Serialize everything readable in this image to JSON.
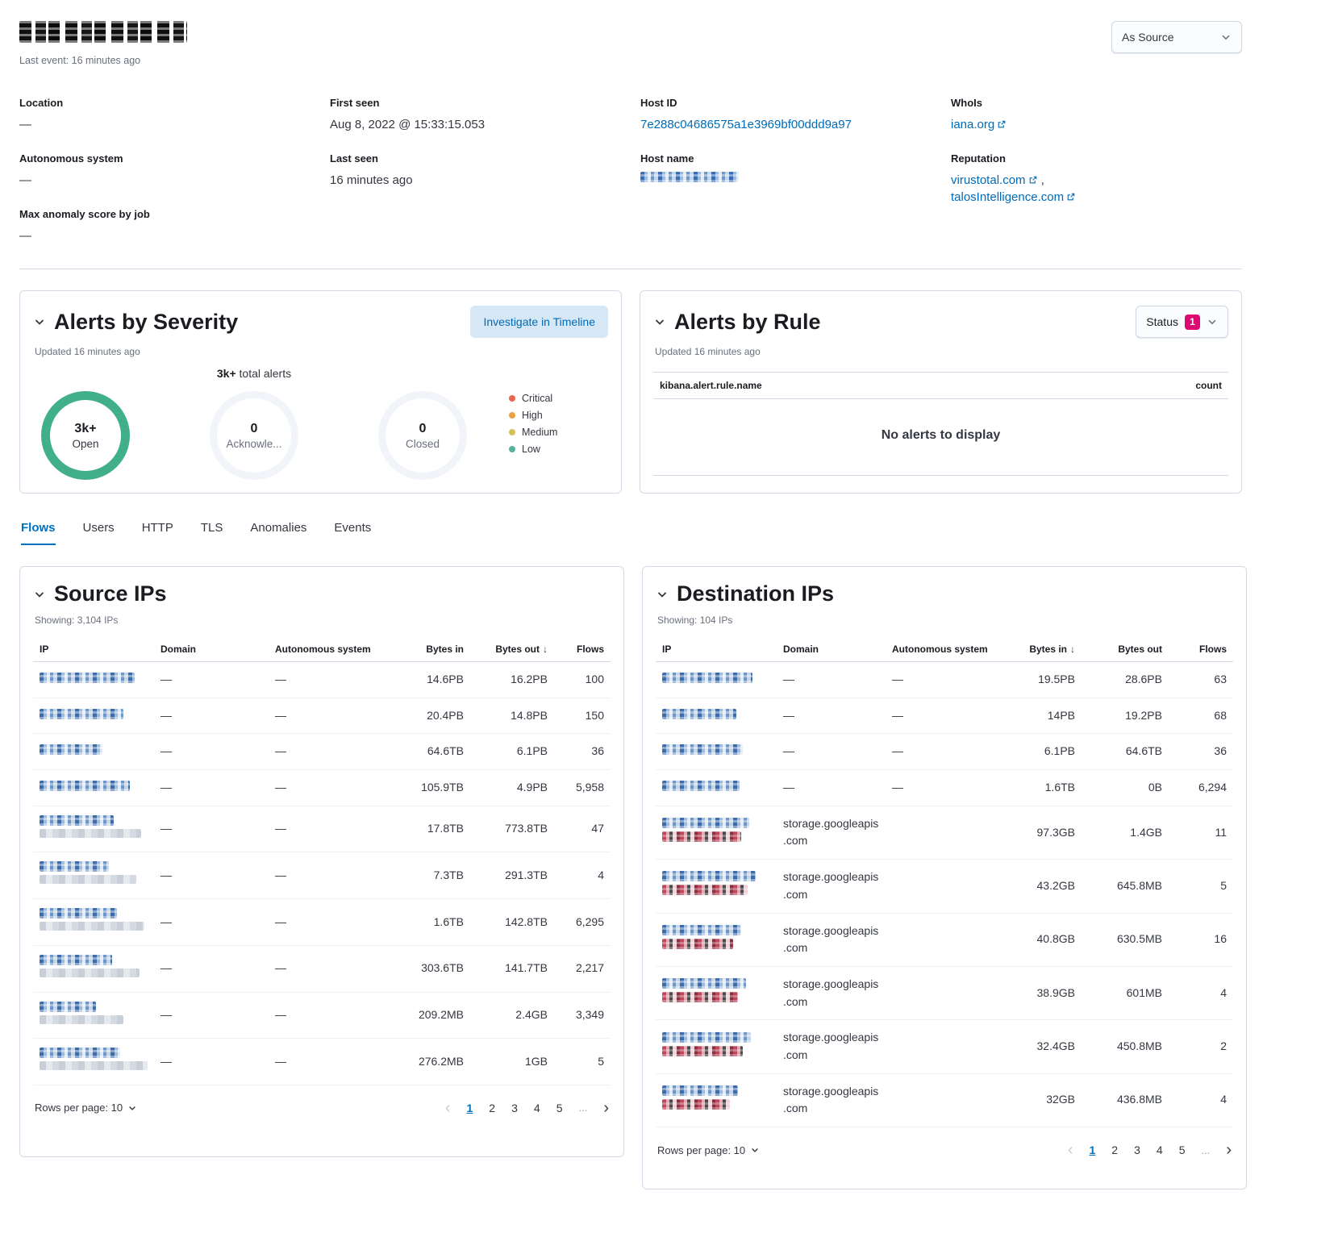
{
  "page": {
    "last_event": "Last event: 16 minutes ago",
    "view_selector": "As Source"
  },
  "overview": {
    "location": {
      "label": "Location",
      "value": "—"
    },
    "autonomous_system": {
      "label": "Autonomous system",
      "value": "—"
    },
    "max_anomaly": {
      "label": "Max anomaly score by job",
      "value": "—"
    },
    "first_seen": {
      "label": "First seen",
      "value": "Aug 8, 2022 @ 15:33:15.053"
    },
    "last_seen": {
      "label": "Last seen",
      "value": "16 minutes ago"
    },
    "host_id": {
      "label": "Host ID",
      "value": "7e288c04686575a1e3969bf00ddd9a97"
    },
    "host_name": {
      "label": "Host name"
    },
    "whois": {
      "label": "WhoIs",
      "value": "iana.org"
    },
    "reputation": {
      "label": "Reputation",
      "links": [
        "virustotal.com",
        "talosIntelligence.com"
      ],
      "separator": ","
    }
  },
  "alerts_by_severity": {
    "title": "Alerts by Severity",
    "updated": "Updated 16 minutes ago",
    "investigate_button": "Investigate in Timeline",
    "total_value": "3k+",
    "total_suffix": "total alerts",
    "donuts": [
      {
        "value": "3k+",
        "label": "Open"
      },
      {
        "value": "0",
        "label": "Acknowle..."
      },
      {
        "value": "0",
        "label": "Closed"
      }
    ],
    "legend": [
      {
        "label": "Critical",
        "color": "#e7664c"
      },
      {
        "label": "High",
        "color": "#e8a33d"
      },
      {
        "label": "Medium",
        "color": "#d6bf57"
      },
      {
        "label": "Low",
        "color": "#54b399"
      }
    ],
    "open_ring_color": "#41b08a"
  },
  "alerts_by_rule": {
    "title": "Alerts by Rule",
    "updated": "Updated 16 minutes ago",
    "status_label": "Status",
    "status_count": "1",
    "status_badge_color": "#dd0a73",
    "rule_column": "kibana.alert.rule.name",
    "count_column": "count",
    "empty_message": "No alerts to display"
  },
  "tabs": [
    {
      "label": "Flows"
    },
    {
      "label": "Users"
    },
    {
      "label": "HTTP"
    },
    {
      "label": "TLS"
    },
    {
      "label": "Anomalies"
    },
    {
      "label": "Events"
    }
  ],
  "source_ips": {
    "title": "Source IPs",
    "showing": "Showing: 3,104 IPs",
    "columns": {
      "ip": "IP",
      "domain": "Domain",
      "autonomous_system": "Autonomous system",
      "bytes_in": "Bytes in",
      "bytes_out": "Bytes out",
      "flows": "Flows"
    },
    "sort_indicator": "↓",
    "rows": [
      {
        "domain": "—",
        "autonomous_system": "—",
        "bytes_in": "14.6PB",
        "bytes_out": "16.2PB",
        "flows": "100"
      },
      {
        "domain": "—",
        "autonomous_system": "—",
        "bytes_in": "20.4PB",
        "bytes_out": "14.8PB",
        "flows": "150"
      },
      {
        "domain": "—",
        "autonomous_system": "—",
        "bytes_in": "64.6TB",
        "bytes_out": "6.1PB",
        "flows": "36"
      },
      {
        "domain": "—",
        "autonomous_system": "—",
        "bytes_in": "105.9TB",
        "bytes_out": "4.9PB",
        "flows": "5,958"
      },
      {
        "domain": "—",
        "autonomous_system": "—",
        "bytes_in": "17.8TB",
        "bytes_out": "773.8TB",
        "flows": "47"
      },
      {
        "domain": "—",
        "autonomous_system": "—",
        "bytes_in": "7.3TB",
        "bytes_out": "291.3TB",
        "flows": "4"
      },
      {
        "domain": "—",
        "autonomous_system": "—",
        "bytes_in": "1.6TB",
        "bytes_out": "142.8TB",
        "flows": "6,295"
      },
      {
        "domain": "—",
        "autonomous_system": "—",
        "bytes_in": "303.6TB",
        "bytes_out": "141.7TB",
        "flows": "2,217"
      },
      {
        "domain": "—",
        "autonomous_system": "—",
        "bytes_in": "209.2MB",
        "bytes_out": "2.4GB",
        "flows": "3,349"
      },
      {
        "domain": "—",
        "autonomous_system": "—",
        "bytes_in": "276.2MB",
        "bytes_out": "1GB",
        "flows": "5"
      }
    ],
    "rows_per_page": "Rows per page: 10",
    "pages": [
      "1",
      "2",
      "3",
      "4",
      "5"
    ],
    "ellipsis": "...",
    "active_page": "1"
  },
  "destination_ips": {
    "title": "Destination IPs",
    "showing": "Showing: 104 IPs",
    "columns": {
      "ip": "IP",
      "domain": "Domain",
      "autonomous_system": "Autonomous system",
      "bytes_in": "Bytes in",
      "bytes_out": "Bytes out",
      "flows": "Flows"
    },
    "sort_indicator": "↓",
    "rows": [
      {
        "domain": "—",
        "autonomous_system": "—",
        "bytes_in": "19.5PB",
        "bytes_out": "28.6PB",
        "flows": "63"
      },
      {
        "domain": "—",
        "autonomous_system": "—",
        "bytes_in": "14PB",
        "bytes_out": "19.2PB",
        "flows": "68"
      },
      {
        "domain": "—",
        "autonomous_system": "—",
        "bytes_in": "6.1PB",
        "bytes_out": "64.6TB",
        "flows": "36"
      },
      {
        "domain": "—",
        "autonomous_system": "—",
        "bytes_in": "1.6TB",
        "bytes_out": "0B",
        "flows": "6,294"
      },
      {
        "domain": "storage.googleapis.com",
        "autonomous_system": "",
        "bytes_in": "97.3GB",
        "bytes_out": "1.4GB",
        "flows": "11"
      },
      {
        "domain": "storage.googleapis.com",
        "autonomous_system": "",
        "bytes_in": "43.2GB",
        "bytes_out": "645.8MB",
        "flows": "5"
      },
      {
        "domain": "storage.googleapis.com",
        "autonomous_system": "",
        "bytes_in": "40.8GB",
        "bytes_out": "630.5MB",
        "flows": "16"
      },
      {
        "domain": "storage.googleapis.com",
        "autonomous_system": "",
        "bytes_in": "38.9GB",
        "bytes_out": "601MB",
        "flows": "4"
      },
      {
        "domain": "storage.googleapis.com",
        "autonomous_system": "",
        "bytes_in": "32.4GB",
        "bytes_out": "450.8MB",
        "flows": "2"
      },
      {
        "domain": "storage.googleapis.com",
        "autonomous_system": "",
        "bytes_in": "32GB",
        "bytes_out": "436.8MB",
        "flows": "4"
      }
    ],
    "rows_per_page": "Rows per page: 10",
    "pages": [
      "1",
      "2",
      "3",
      "4",
      "5"
    ],
    "ellipsis": "...",
    "active_page": "1"
  },
  "chart_data": {
    "type": "pie",
    "title": "Alerts by Severity",
    "subtitle": "3k+ total alerts",
    "donuts": [
      {
        "label": "Open",
        "value": "3k+",
        "segments": [
          {
            "severity": "Low",
            "value": "3k+"
          }
        ]
      },
      {
        "label": "Acknowledged",
        "value": "0",
        "segments": []
      },
      {
        "label": "Closed",
        "value": "0",
        "segments": []
      }
    ],
    "legend": [
      "Critical",
      "High",
      "Medium",
      "Low"
    ],
    "legend_position": "right"
  }
}
